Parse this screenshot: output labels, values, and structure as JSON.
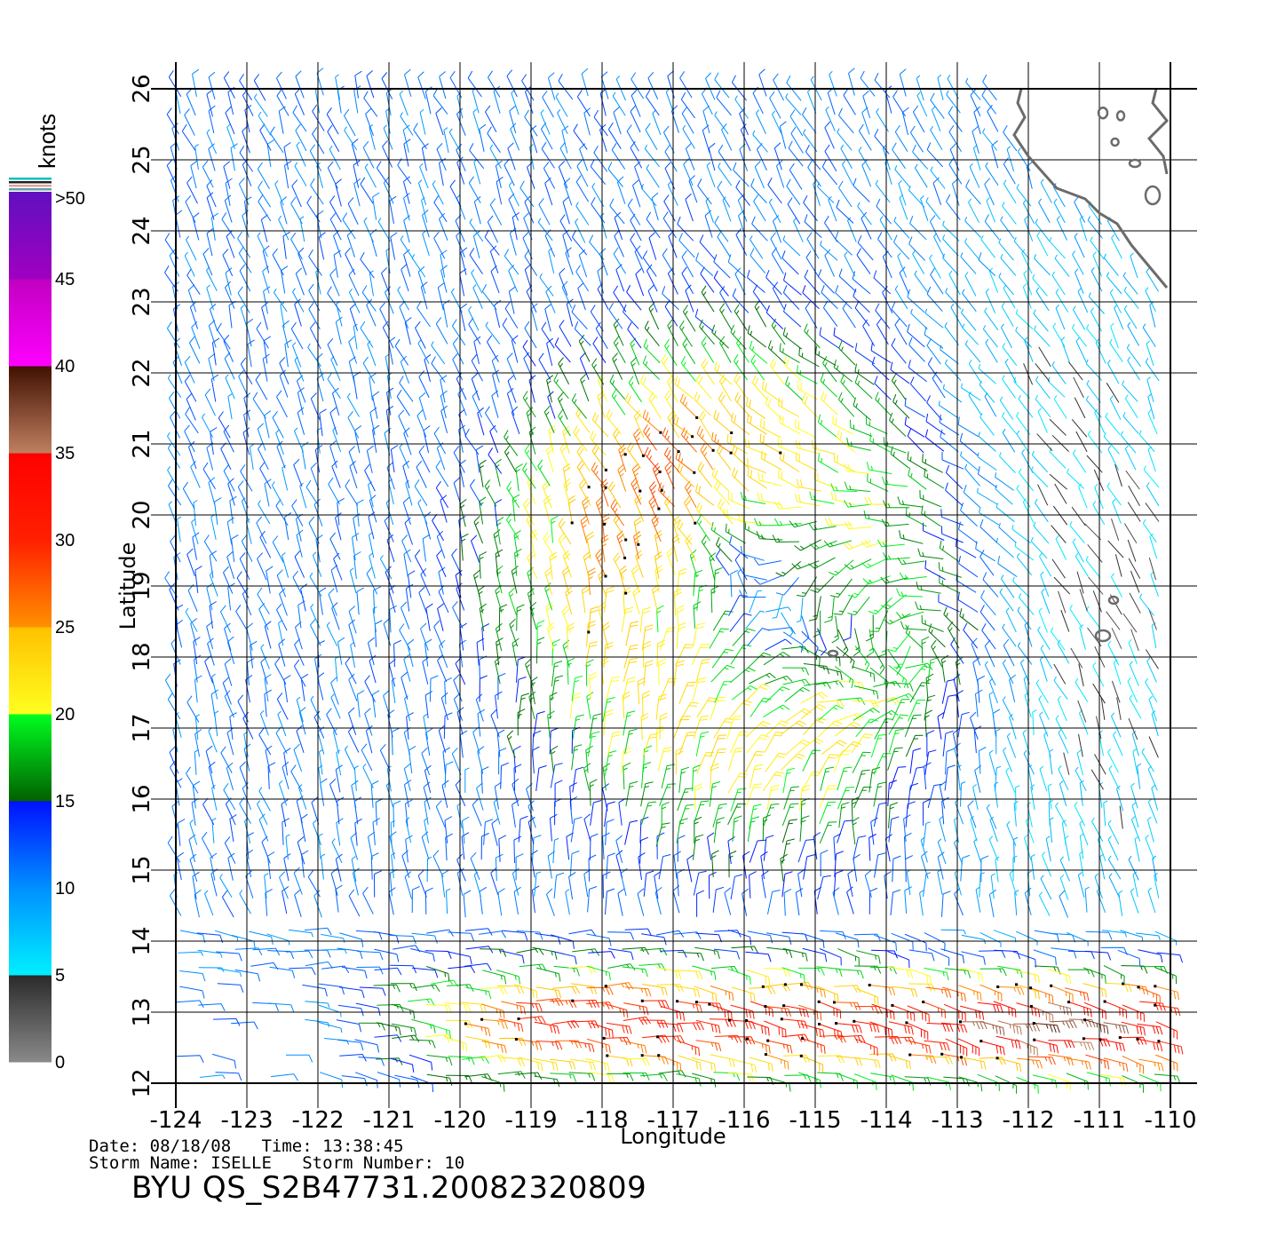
{
  "map": {
    "ylabel": "Latitude",
    "xlabel": "Longitude",
    "lon_ticks": [
      "-124",
      "-123",
      "-122",
      "-121",
      "-120",
      "-119",
      "-118",
      "-117",
      "-116",
      "-115",
      "-114",
      "-113",
      "-112",
      "-111",
      "-110"
    ],
    "lat_ticks": [
      "12",
      "13",
      "14",
      "15",
      "16",
      "17",
      "18",
      "19",
      "20",
      "21",
      "22",
      "23",
      "24",
      "25",
      "26"
    ],
    "lon_range": [
      -124,
      -110
    ],
    "lat_range": [
      12,
      26
    ],
    "storm_center": {
      "lon": -115.7,
      "lat": 18.8
    },
    "coastline_color": "#6b6b6b"
  },
  "colorbar": {
    "unit_label": "knots",
    "tick_labels": [
      {
        "label": ">50",
        "knots": 50
      },
      {
        "label": "45",
        "knots": 45
      },
      {
        "label": "40",
        "knots": 40
      },
      {
        "label": "35",
        "knots": 35
      },
      {
        "label": "30",
        "knots": 30
      },
      {
        "label": "25",
        "knots": 25
      },
      {
        "label": "20",
        "knots": 20
      },
      {
        "label": "15",
        "knots": 15
      },
      {
        "label": "10",
        "knots": 10
      },
      {
        "label": "5",
        "knots": 5
      },
      {
        "label": "0",
        "knots": 0
      }
    ],
    "bands": [
      {
        "from": 0,
        "to": 5,
        "colors": [
          "#8a8a8a",
          "#2a2a2a"
        ]
      },
      {
        "from": 5,
        "to": 10,
        "colors": [
          "#00f0ff",
          "#0090ff"
        ]
      },
      {
        "from": 10,
        "to": 15,
        "colors": [
          "#0090ff",
          "#0010ff"
        ]
      },
      {
        "from": 15,
        "to": 20,
        "colors": [
          "#006000",
          "#00ff20"
        ]
      },
      {
        "from": 20,
        "to": 25,
        "colors": [
          "#ffff20",
          "#ffc000"
        ]
      },
      {
        "from": 25,
        "to": 30,
        "colors": [
          "#ff9000",
          "#ff2000"
        ]
      },
      {
        "from": 30,
        "to": 35,
        "colors": [
          "#ff2000",
          "#ff0000"
        ]
      },
      {
        "from": 35,
        "to": 40,
        "colors": [
          "#c08060",
          "#401000"
        ]
      },
      {
        "from": 40,
        "to": 45,
        "colors": [
          "#ff00ff",
          "#c000c0"
        ]
      },
      {
        "from": 45,
        "to": 50,
        "colors": [
          "#a000c0",
          "#6010c0"
        ]
      }
    ]
  },
  "info": {
    "date_line": "Date: 08/18/08   Time: 13:38:45",
    "storm_line": "Storm Name: ISELLE   Storm Number: 10",
    "product_id": "BYU QS_S2B47731.20082320809"
  }
}
